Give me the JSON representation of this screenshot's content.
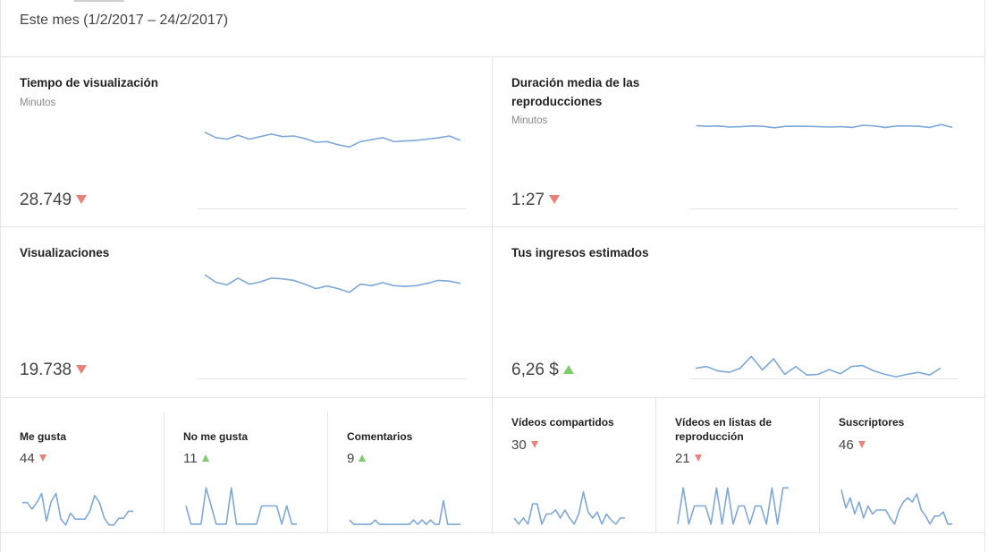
{
  "period": {
    "label": "Este mes (1/2/2017 – 24/2/2017)"
  },
  "colors": {
    "spark": "#7ea8d8",
    "down": "#e8837a",
    "up": "#7ccc6a",
    "border": "#e5e5e5"
  },
  "cards": [
    {
      "title": "Tiempo de visualización",
      "subtitle": "Minutos",
      "value": "28.749",
      "trend": "down",
      "series": [
        0.92,
        0.75,
        0.7,
        0.82,
        0.7,
        0.78,
        0.86,
        0.78,
        0.8,
        0.72,
        0.6,
        0.62,
        0.52,
        0.45,
        0.62,
        0.68,
        0.75,
        0.62,
        0.64,
        0.66,
        0.7,
        0.74,
        0.8,
        0.66
      ]
    },
    {
      "title": "Duración media de las reproducciones",
      "subtitle": "Minutos",
      "value": "1:27",
      "trend": "down",
      "series": [
        0.78,
        0.74,
        0.76,
        0.7,
        0.72,
        0.76,
        0.74,
        0.66,
        0.74,
        0.74,
        0.74,
        0.72,
        0.7,
        0.72,
        0.68,
        0.8,
        0.76,
        0.68,
        0.76,
        0.76,
        0.74,
        0.68,
        0.84,
        0.68
      ]
    },
    {
      "title": "Visualizaciones",
      "subtitle": "",
      "value": "19.738",
      "trend": "down",
      "series": [
        0.95,
        0.75,
        0.68,
        0.86,
        0.7,
        0.76,
        0.86,
        0.84,
        0.8,
        0.7,
        0.58,
        0.65,
        0.58,
        0.48,
        0.7,
        0.66,
        0.74,
        0.66,
        0.64,
        0.66,
        0.72,
        0.8,
        0.78,
        0.72
      ]
    },
    {
      "title": "Tus ingresos estimados",
      "subtitle": "",
      "value": "6,26 $",
      "trend": "up",
      "series": [
        0.3,
        0.35,
        0.22,
        0.18,
        0.3,
        0.65,
        0.25,
        0.58,
        0.12,
        0.35,
        0.1,
        0.12,
        0.26,
        0.14,
        0.35,
        0.38,
        0.22,
        0.12,
        0.05,
        0.12,
        0.18,
        0.1,
        0.3
      ]
    }
  ],
  "small_cards": [
    {
      "title": "Me gusta",
      "value": "44",
      "trend": "down",
      "series": [
        0.62,
        0.62,
        0.45,
        0.62,
        0.85,
        0.15,
        0.65,
        0.85,
        0.2,
        0.05,
        0.35,
        0.2,
        0.2,
        0.2,
        0.4,
        0.8,
        0.62,
        0.22,
        0.05,
        0.05,
        0.22,
        0.22,
        0.4,
        0.4
      ]
    },
    {
      "title": "No me gusta",
      "value": "11",
      "trend": "up",
      "series": [
        0.5,
        0.05,
        0.05,
        0.05,
        0.95,
        0.5,
        0.05,
        0.05,
        0.05,
        0.95,
        0.05,
        0.05,
        0.05,
        0.05,
        0.05,
        0.5,
        0.5,
        0.5,
        0.5,
        0.05,
        0.5,
        0.05,
        0.05
      ]
    },
    {
      "title": "Comentarios",
      "value": "9",
      "trend": "up",
      "series": [
        0.18,
        0.05,
        0.05,
        0.05,
        0.05,
        0.05,
        0.18,
        0.05,
        0.05,
        0.05,
        0.05,
        0.05,
        0.05,
        0.05,
        0.05,
        0.18,
        0.05,
        0.18,
        0.05,
        0.18,
        0.05,
        0.05,
        0.75,
        0.05,
        0.05,
        0.05,
        0.05
      ]
    },
    {
      "title": "Vídeos compartidos",
      "value": "30",
      "trend": "down",
      "series": [
        0.2,
        0.05,
        0.2,
        0.05,
        0.55,
        0.55,
        0.05,
        0.3,
        0.3,
        0.4,
        0.2,
        0.4,
        0.2,
        0.05,
        0.3,
        0.85,
        0.35,
        0.2,
        0.35,
        0.05,
        0.3,
        0.15,
        0.05,
        0.2,
        0.2
      ]
    },
    {
      "title": "Vídeos en listas de reproducción",
      "value": "21",
      "trend": "down",
      "series": [
        0.05,
        0.95,
        0.05,
        0.5,
        0.5,
        0.5,
        0.05,
        0.95,
        0.05,
        0.95,
        0.05,
        0.5,
        0.5,
        0.05,
        0.5,
        0.5,
        0.05,
        0.95,
        0.05,
        0.95,
        0.95
      ]
    },
    {
      "title": "Suscriptores",
      "value": "46",
      "trend": "down",
      "series": [
        0.9,
        0.45,
        0.7,
        0.3,
        0.6,
        0.2,
        0.5,
        0.3,
        0.4,
        0.4,
        0.4,
        0.2,
        0.05,
        0.4,
        0.6,
        0.7,
        0.6,
        0.8,
        0.4,
        0.25,
        0.05,
        0.25,
        0.25,
        0.35,
        0.05,
        0.05
      ]
    }
  ]
}
